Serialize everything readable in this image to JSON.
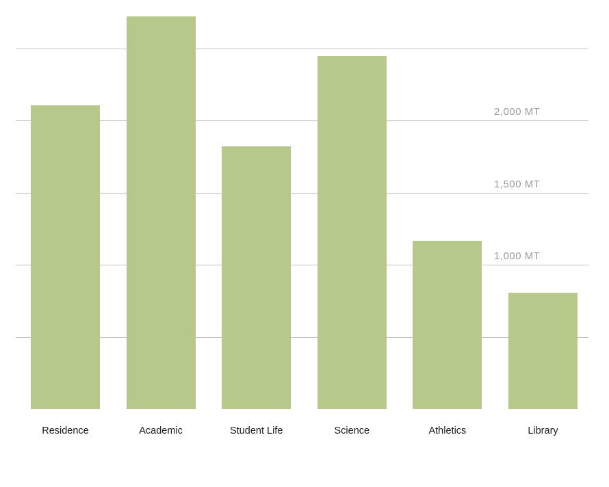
{
  "chart_data": {
    "type": "bar",
    "title": "",
    "xlabel": "",
    "ylabel": "",
    "unit": "MT",
    "categories": [
      "Residence",
      "Academic",
      "Student Life",
      "Science",
      "Athletics",
      "Library"
    ],
    "values": [
      2105,
      2720,
      1820,
      2445,
      1165,
      805
    ],
    "ylim": [
      0,
      2835
    ],
    "grid": "horizontal",
    "legend_position": "none",
    "gridline_values": [
      500,
      1000,
      1500,
      2000,
      2500
    ],
    "y_ticks": [
      {
        "value": 2000,
        "label": "2,000 MT"
      },
      {
        "value": 1500,
        "label": "1,500 MT"
      },
      {
        "value": 1000,
        "label": "1,000 MT"
      }
    ],
    "colors": {
      "bar": "#b6c98b",
      "gridline": "#c2c2c2",
      "tick_label": "#9b9b9b",
      "category_label": "#1b1b1b",
      "background": "#ffffff"
    }
  }
}
